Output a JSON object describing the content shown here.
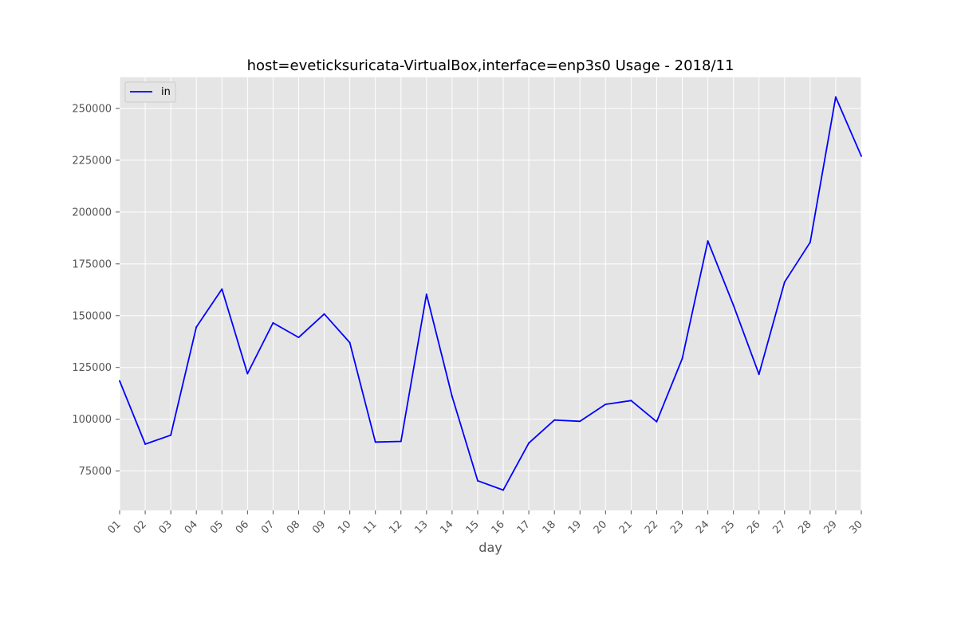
{
  "chart_data": {
    "type": "line",
    "title": "host=eveticksuricata-VirtualBox,interface=enp3s0 Usage - 2018/11",
    "xlabel": "day",
    "ylabel": "",
    "categories": [
      "01",
      "02",
      "03",
      "04",
      "05",
      "06",
      "07",
      "08",
      "09",
      "10",
      "11",
      "12",
      "13",
      "14",
      "15",
      "16",
      "17",
      "18",
      "19",
      "20",
      "21",
      "22",
      "23",
      "24",
      "25",
      "26",
      "27",
      "28",
      "29",
      "30"
    ],
    "series": [
      {
        "name": "in",
        "color": "#0000ff",
        "values": [
          118500,
          88000,
          92300,
          144500,
          162800,
          122000,
          146500,
          139500,
          150800,
          137000,
          89000,
          89300,
          160300,
          111000,
          70300,
          65800,
          88500,
          99600,
          99000,
          107200,
          109000,
          98800,
          129300,
          186000,
          155000,
          121700,
          166200,
          185400,
          255500,
          227000
        ]
      }
    ],
    "ylim": [
      56000,
      265000
    ],
    "yticks": [
      75000,
      100000,
      125000,
      150000,
      175000,
      200000,
      225000,
      250000
    ],
    "ytick_labels": [
      "75000",
      "100000",
      "125000",
      "150000",
      "175000",
      "200000",
      "225000",
      "250000"
    ],
    "grid": true,
    "legend_position": "top-left",
    "background": "#e5e5e5",
    "grid_color": "#ffffff"
  }
}
